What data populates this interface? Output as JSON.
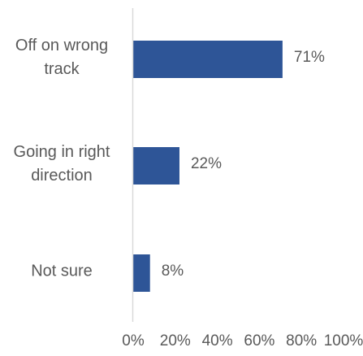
{
  "chart_data": {
    "type": "bar",
    "orientation": "horizontal",
    "title": "",
    "xlabel": "",
    "ylabel": "",
    "categories": [
      "Off on wrong track",
      "Going in right direction",
      "Not sure"
    ],
    "category_lines": [
      [
        "Off on wrong",
        "track"
      ],
      [
        "Going in right",
        "direction"
      ],
      [
        "Not sure"
      ]
    ],
    "values": [
      71,
      22,
      8
    ],
    "data_labels": [
      "71%",
      "22%",
      "8%"
    ],
    "xlim": [
      0,
      100
    ],
    "x_ticks": [
      0,
      20,
      40,
      60,
      80,
      100
    ],
    "x_tick_labels": [
      "0%",
      "20%",
      "40%",
      "60%",
      "80%",
      "100%"
    ],
    "bar_color": "#2e5597",
    "grid": false,
    "legend": "none"
  }
}
